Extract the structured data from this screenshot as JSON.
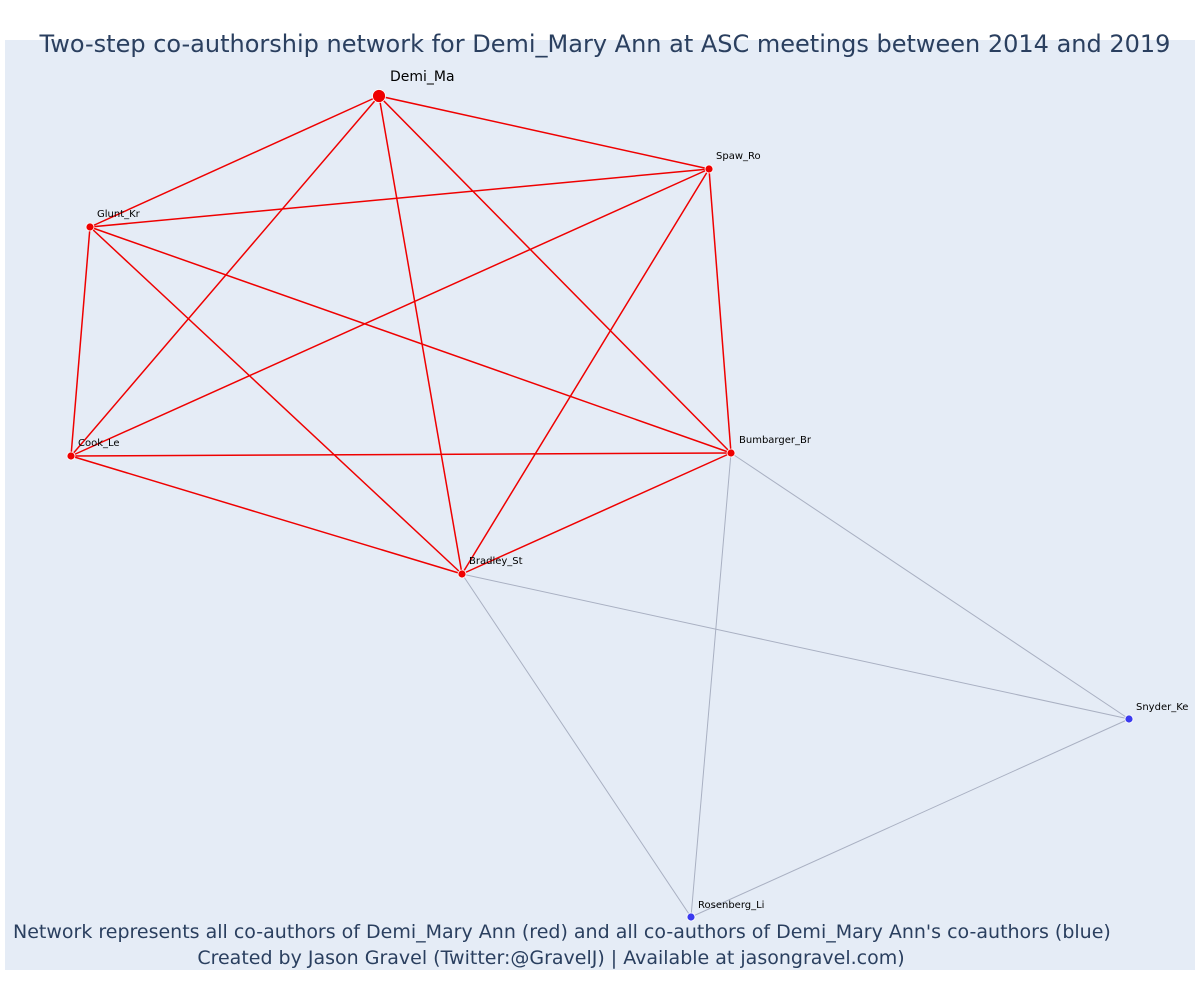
{
  "title": "Two-step co-authorship network for Demi_Mary Ann at ASC meetings between 2014 and 2019",
  "caption": {
    "line1": "Network represents all co-authors of Demi_Mary Ann (red) and all co-authors of Demi_Mary Ann's co-authors (blue)",
    "line2": "Created by Jason Gravel (Twitter:@GravelJ) | Available at jasongravel.com)"
  },
  "colors": {
    "background": "#e5ecf6",
    "first_step": "#ef0000",
    "second_step": "#3a3aef",
    "edge_first": "#ef0000",
    "edge_second": "#a9b0c2",
    "text": "#2a3f5f"
  },
  "nodes": [
    {
      "id": "Demi_Ma",
      "label": "Demi_Ma",
      "group": "focal"
    },
    {
      "id": "Spaw_Ro",
      "label": "Spaw_Ro",
      "group": "first"
    },
    {
      "id": "Glunt_Kr",
      "label": "Glunt_Kr",
      "group": "first"
    },
    {
      "id": "Cook_Le",
      "label": "Cook_Le",
      "group": "first"
    },
    {
      "id": "Bumbarger_Br",
      "label": "Bumbarger_Br",
      "group": "first"
    },
    {
      "id": "Bradley_St",
      "label": "Bradley_St",
      "group": "first"
    },
    {
      "id": "Snyder_Ke",
      "label": "Snyder_Ke",
      "group": "second"
    },
    {
      "id": "Rosenberg_Li",
      "label": "Rosenberg_Li",
      "group": "second"
    }
  ],
  "edges": [
    {
      "source": "Demi_Ma",
      "target": "Spaw_Ro",
      "type": "first"
    },
    {
      "source": "Demi_Ma",
      "target": "Glunt_Kr",
      "type": "first"
    },
    {
      "source": "Demi_Ma",
      "target": "Cook_Le",
      "type": "first"
    },
    {
      "source": "Demi_Ma",
      "target": "Bumbarger_Br",
      "type": "first"
    },
    {
      "source": "Demi_Ma",
      "target": "Bradley_St",
      "type": "first"
    },
    {
      "source": "Spaw_Ro",
      "target": "Glunt_Kr",
      "type": "first"
    },
    {
      "source": "Spaw_Ro",
      "target": "Cook_Le",
      "type": "first"
    },
    {
      "source": "Spaw_Ro",
      "target": "Bumbarger_Br",
      "type": "first"
    },
    {
      "source": "Spaw_Ro",
      "target": "Bradley_St",
      "type": "first"
    },
    {
      "source": "Glunt_Kr",
      "target": "Cook_Le",
      "type": "first"
    },
    {
      "source": "Glunt_Kr",
      "target": "Bumbarger_Br",
      "type": "first"
    },
    {
      "source": "Glunt_Kr",
      "target": "Bradley_St",
      "type": "first"
    },
    {
      "source": "Cook_Le",
      "target": "Bumbarger_Br",
      "type": "first"
    },
    {
      "source": "Cook_Le",
      "target": "Bradley_St",
      "type": "first"
    },
    {
      "source": "Bumbarger_Br",
      "target": "Bradley_St",
      "type": "first"
    },
    {
      "source": "Bumbarger_Br",
      "target": "Snyder_Ke",
      "type": "second"
    },
    {
      "source": "Bumbarger_Br",
      "target": "Rosenberg_Li",
      "type": "second"
    },
    {
      "source": "Bradley_St",
      "target": "Snyder_Ke",
      "type": "second"
    },
    {
      "source": "Bradley_St",
      "target": "Rosenberg_Li",
      "type": "second"
    },
    {
      "source": "Snyder_Ke",
      "target": "Rosenberg_Li",
      "type": "second"
    }
  ]
}
